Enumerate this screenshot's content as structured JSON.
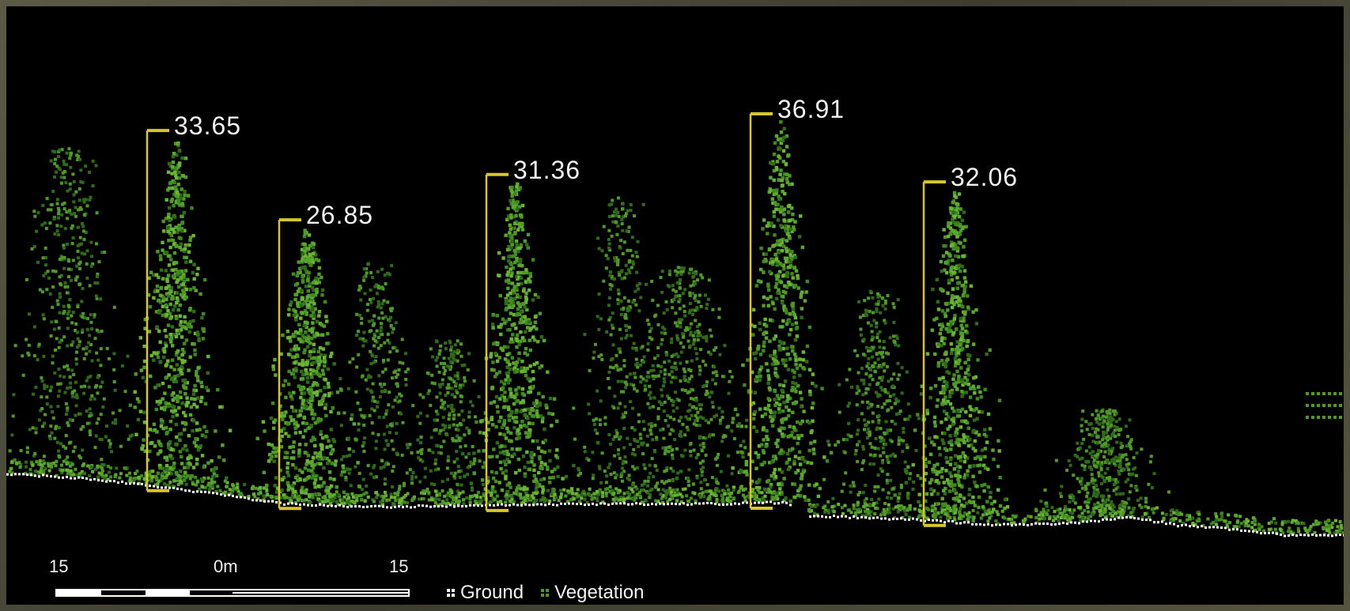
{
  "chart_data": {
    "type": "scatter",
    "description_type": "lidar point cloud profile",
    "title": "",
    "xlabel": "",
    "ylabel": "",
    "height_unit": "m",
    "trees": [
      {
        "id": "tree-1",
        "height": 33.65,
        "label": "33.65"
      },
      {
        "id": "tree-2",
        "height": 26.85,
        "label": "26.85"
      },
      {
        "id": "tree-3",
        "height": 31.36,
        "label": "31.36"
      },
      {
        "id": "tree-4",
        "height": 36.91,
        "label": "36.91"
      },
      {
        "id": "tree-5",
        "height": 32.06,
        "label": "32.06"
      }
    ],
    "scale_bar": {
      "ticks": [
        "15",
        "0m",
        "15"
      ],
      "tick_values": [
        -15,
        0,
        15
      ],
      "unit": "m",
      "segments_per_side": 4
    },
    "legend": [
      {
        "name": "Ground",
        "color": "#ffffff"
      },
      {
        "name": "Vegetation",
        "color": "#4f9a26"
      }
    ],
    "colors": {
      "background": "#000000",
      "frame": "#4a4a3a",
      "vegetation": "#4f9a26",
      "vegetation_dark": "#2f6a18",
      "ground": "#ffffff",
      "measure_line": "#d8c72a",
      "label_text": "#f2f2f2"
    }
  }
}
